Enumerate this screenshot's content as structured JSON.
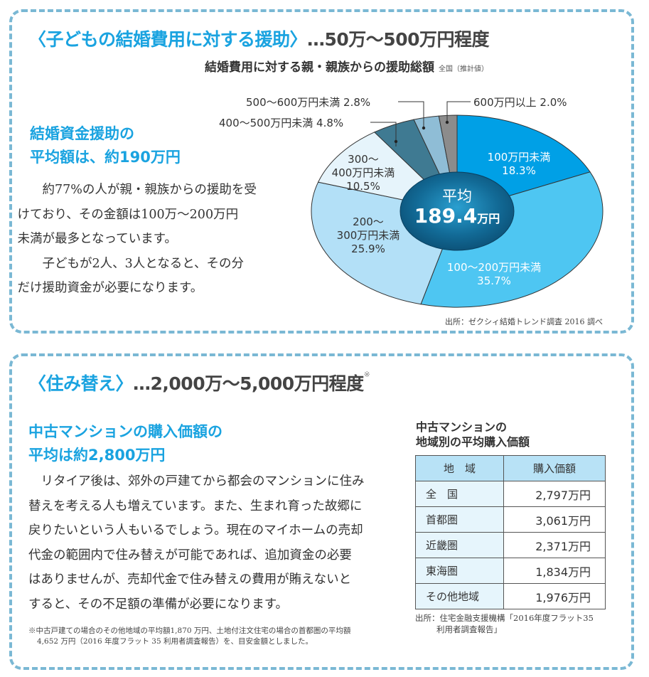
{
  "section1": {
    "title_accent": "〈子どもの結婚費用に対する援助〉",
    "title_rest": "…50万〜500万円程度",
    "subhead_line1": "結婚資金援助の",
    "subhead_line2": "平均額は、約190万円",
    "body_p1_line1": "約77%の人が親・親族からの援助を受",
    "body_p1_line2": "けており、その金額は100万〜200万円",
    "body_p1_line3": "未満が最多となっています。",
    "body_p2_line1": "子どもが2人、3人となると、その分",
    "body_p2_line2": "だけ援助資金が必要になります。",
    "chart_title": "結婚費用に対する親・親族からの援助総額",
    "chart_title_note": "全国（推計値）",
    "center_label_line1": "平均",
    "center_label_value": "189.4",
    "center_label_unit": "万円",
    "source": "出所：ゼクシィ結婚トレンド調査 2016 調べ"
  },
  "chart_data": {
    "type": "pie",
    "title": "結婚費用に対する親・親族からの援助総額 全国（推計値）",
    "center_annotation": "平均 189.4万円",
    "categories": [
      "100万円未満",
      "100〜200万円未満",
      "200〜300万円未満",
      "300〜400万円未満",
      "400〜500万円未満",
      "500〜600万円未満",
      "600万円以上"
    ],
    "values": [
      18.3,
      35.7,
      25.9,
      10.5,
      4.8,
      2.8,
      2.0
    ],
    "unit": "%",
    "colors": [
      "#00a0e6",
      "#4ec6f2",
      "#b3e0f7",
      "#e6f4fb",
      "#3f7a92",
      "#8fbdd6",
      "#8c8c8c"
    ],
    "labels": {
      "s0_l1": "100万円未満",
      "s0_l2": "18.3%",
      "s1_l1": "100〜200万円未満",
      "s1_l2": "35.7%",
      "s2_l1": "200〜",
      "s2_l2": "300万円未満",
      "s2_l3": "25.9%",
      "s3_l1": "300〜",
      "s3_l2": "400万円未満",
      "s3_l3": "10.5%",
      "s4": "400〜500万円未満 4.8%",
      "s5": "500〜600万円未満 2.8%",
      "s6": "600万円以上 2.0%"
    },
    "source": "出所：ゼクシィ結婚トレンド調査 2016 調べ"
  },
  "section2": {
    "title_accent": "〈住み替え〉",
    "title_rest": "…2,000万〜5,000万円程度",
    "title_note": "※",
    "subhead_line1": "中古マンションの購入価額の",
    "subhead_line2": "平均は約2,800万円",
    "body_line1": "リタイア後は、郊外の戸建てから都会のマンションに住み",
    "body_line2": "替えを考える人も増えています。また、生まれ育った故郷に",
    "body_line3": "戻りたいという人もいるでしょう。現在のマイホームの売却",
    "body_line4": "代金の範囲内で住み替えが可能であれば、追加資金の必要",
    "body_line5": "はありませんが、売却代金で住み替えの費用が賄えないと",
    "body_line6": "すると、その不足額の準備が必要になります。",
    "footnote_line1": "※中古戸建ての場合のその他地域の平均額1,870 万円、土地付注文住宅の場合の首都圏の平均額",
    "footnote_line2": "4,652 万円（2016 年度フラット 35 利用者調査報告）を、目安金額としました。",
    "table_title_line1": "中古マンションの",
    "table_title_line2": "地域別の平均購入価額",
    "table_headers": [
      "地　域",
      "購入価額"
    ],
    "table_rows": [
      {
        "region": "全　国",
        "value": "2,797万円"
      },
      {
        "region": "首都圏",
        "value": "3,061万円"
      },
      {
        "region": "近畿圏",
        "value": "2,371万円"
      },
      {
        "region": "東海圏",
        "value": "1,834万円"
      },
      {
        "region": "その他地域",
        "value": "1,976万円"
      }
    ],
    "table_source_line1": "出所：住宅金融支援機構「2016年度フラット35",
    "table_source_line2": "利用者調査報告」"
  }
}
